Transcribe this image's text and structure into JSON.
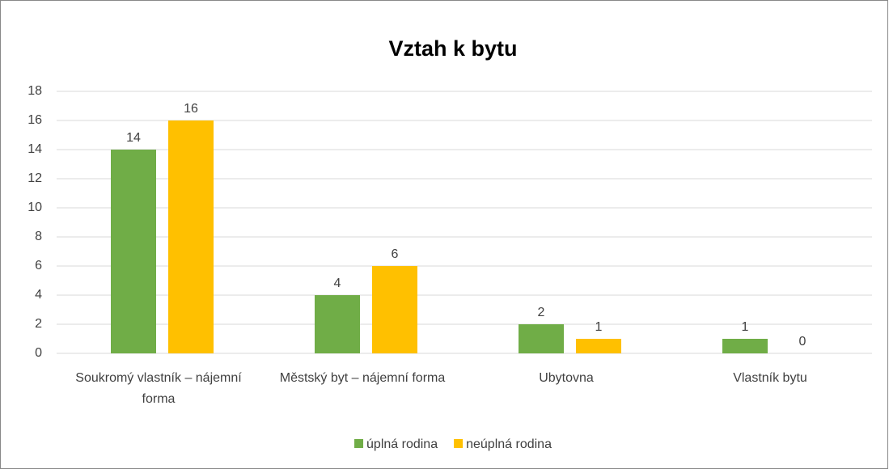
{
  "chart_data": {
    "type": "bar",
    "title": "Vztah k bytu",
    "categories": [
      "Soukromý vlastník – nájemní forma",
      "Městský byt – nájemní forma",
      "Ubytovna",
      "Vlastník bytu"
    ],
    "series": [
      {
        "name": "úplná rodina",
        "color": "#70ad47",
        "values": [
          14,
          4,
          2,
          1
        ]
      },
      {
        "name": "neúplná rodina",
        "color": "#ffc000",
        "values": [
          16,
          6,
          1,
          0
        ]
      }
    ],
    "ylim": [
      0,
      18
    ],
    "yticks": [
      0,
      2,
      4,
      6,
      8,
      10,
      12,
      14,
      16,
      18
    ],
    "grid": true,
    "legend": "bottom"
  }
}
